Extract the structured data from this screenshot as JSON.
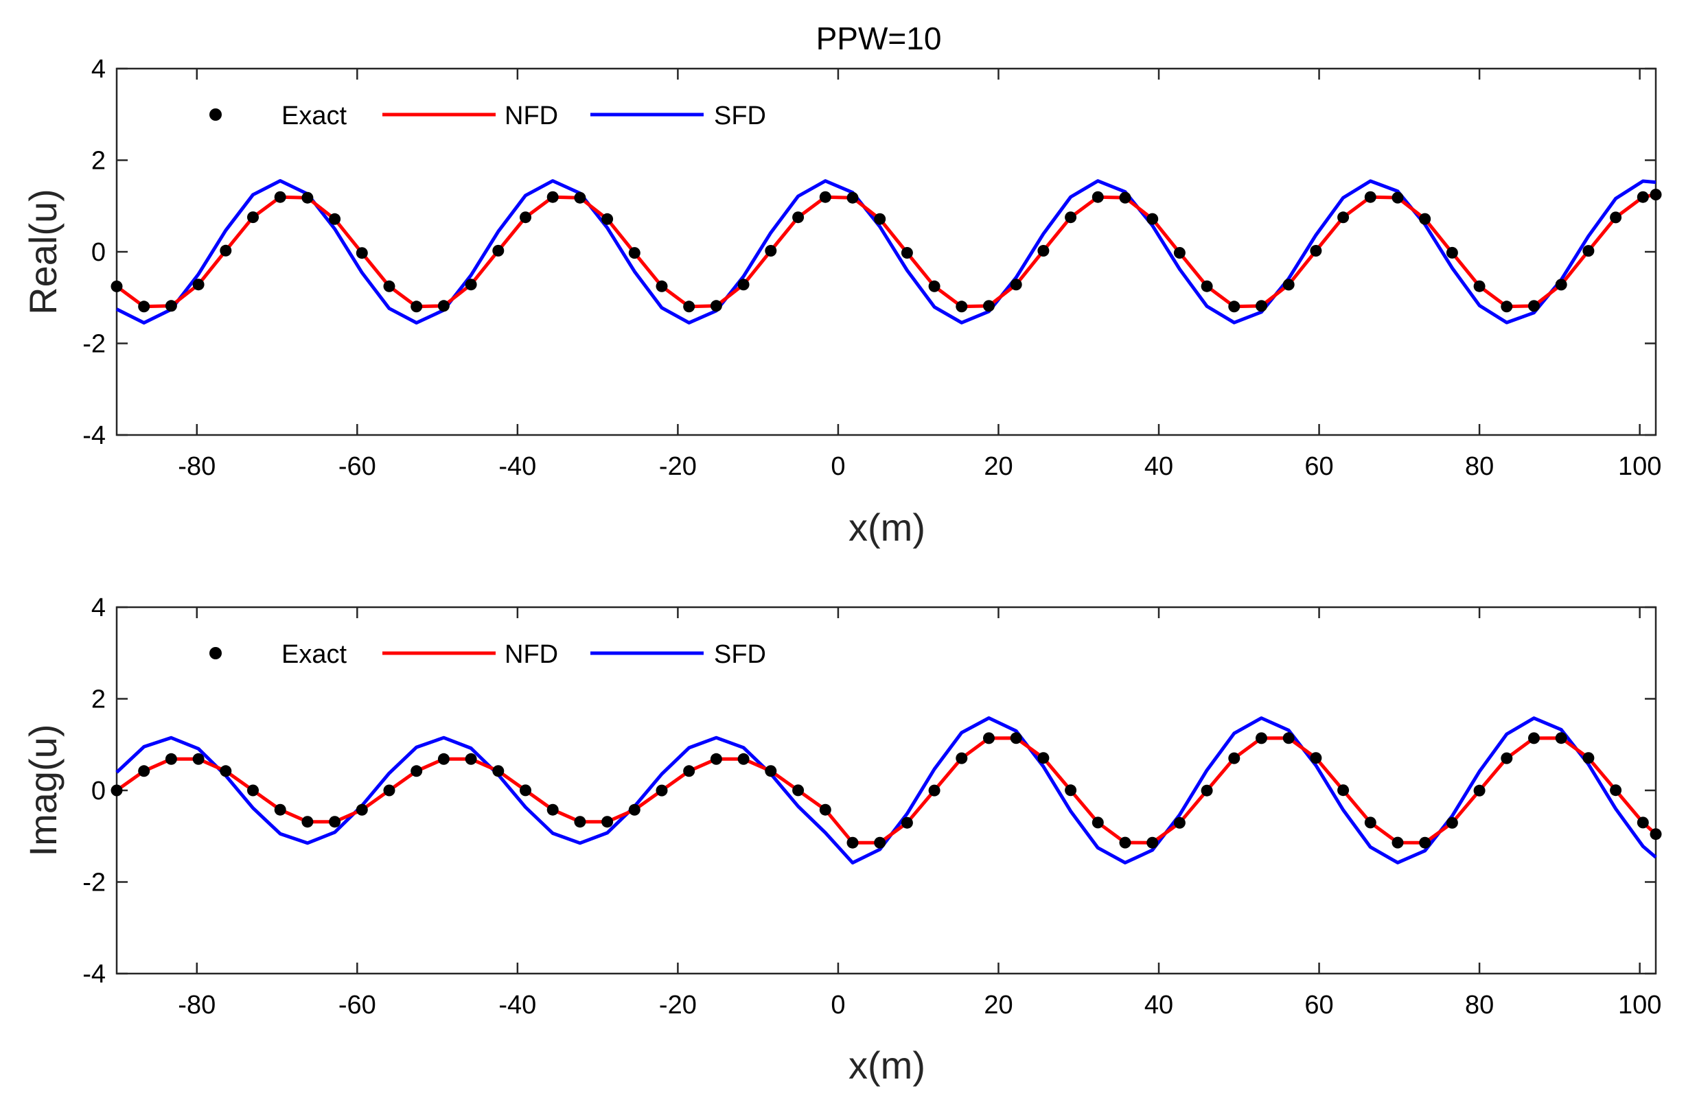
{
  "figure_title": "PPW=10",
  "colors": {
    "exact": "#000000",
    "nfd": "#ff0000",
    "sfd": "#0000ff",
    "axis": "#262626"
  },
  "chart_data": [
    {
      "type": "line",
      "ylabel": "Real(u)",
      "xlabel": "x(m)",
      "xlim": [
        -90,
        102
      ],
      "ylim": [
        -4,
        4
      ],
      "xticks": [
        -80,
        -60,
        -40,
        -20,
        0,
        20,
        40,
        60,
        80,
        100
      ],
      "xtick_labels": [
        "-80",
        "-60",
        "-40",
        "-20",
        "0",
        "20",
        "40",
        "60",
        "80",
        "100"
      ],
      "yticks": [
        -4,
        -2,
        0,
        2,
        4
      ],
      "ytick_labels": [
        "-4",
        "-2",
        "0",
        "2",
        "4"
      ],
      "legend": {
        "position": "top-left",
        "entries": [
          "Exact",
          "NFD",
          "SFD"
        ]
      },
      "model": {
        "kind": "cos",
        "dx": 3.4,
        "x0": -90,
        "x1": 102,
        "exact_amp": 1.25,
        "exact_k": 0.18478,
        "sfd_amp": 1.55,
        "sfd_k": 0.1843,
        "sfd_phase": 0.25
      },
      "series": [
        {
          "name": "Exact",
          "style": "markers",
          "values": []
        },
        {
          "name": "NFD",
          "style": "line",
          "values": []
        },
        {
          "name": "SFD",
          "style": "line",
          "values": []
        }
      ]
    },
    {
      "type": "line",
      "ylabel": "Imag(u)",
      "xlabel": "x(m)",
      "xlim": [
        -90,
        102
      ],
      "ylim": [
        -4,
        4
      ],
      "xticks": [
        -80,
        -60,
        -40,
        -20,
        0,
        20,
        40,
        60,
        80,
        100
      ],
      "xtick_labels": [
        "-80",
        "-60",
        "-40",
        "-20",
        "0",
        "20",
        "40",
        "60",
        "80",
        "100"
      ],
      "yticks": [
        -4,
        -2,
        0,
        2,
        4
      ],
      "ytick_labels": [
        "-4",
        "-2",
        "0",
        "2",
        "4"
      ],
      "legend": {
        "position": "top-left",
        "entries": [
          "Exact",
          "NFD",
          "SFD"
        ]
      },
      "model": {
        "kind": "sin_env",
        "dx": 3.4,
        "x0": -90,
        "x1": 102,
        "exact_k": 0.18478,
        "amp_left": 0.72,
        "amp_right": 1.2,
        "sfd_amp_left": 1.15,
        "sfd_amp_right": 1.58,
        "sfd_k": 0.1843,
        "sfd_phase": 0.35
      },
      "series": [
        {
          "name": "Exact",
          "style": "markers",
          "values": []
        },
        {
          "name": "NFD",
          "style": "line",
          "values": []
        },
        {
          "name": "SFD",
          "style": "line",
          "values": []
        }
      ]
    }
  ]
}
